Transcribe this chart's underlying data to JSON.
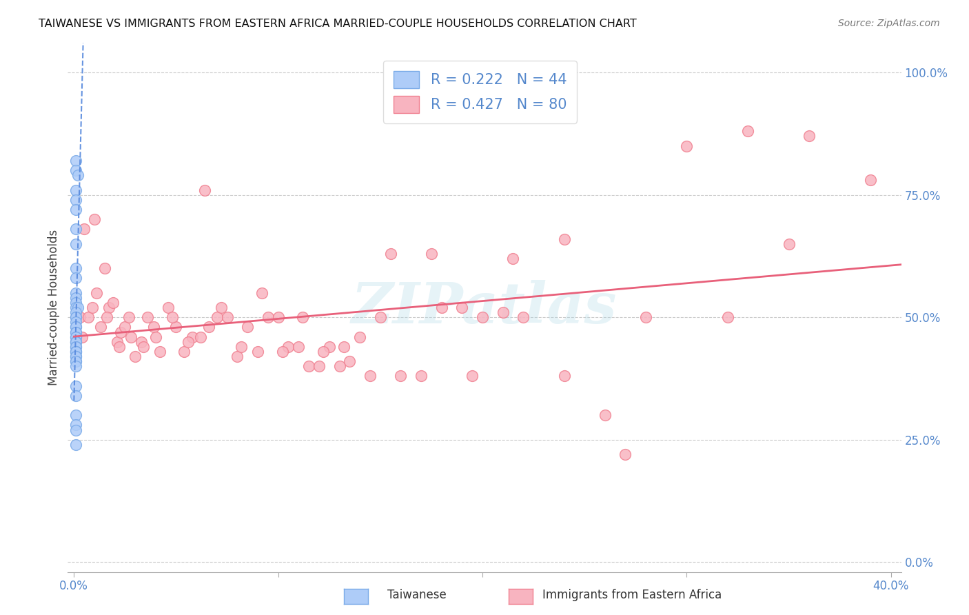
{
  "title": "TAIWANESE VS IMMIGRANTS FROM EASTERN AFRICA MARRIED-COUPLE HOUSEHOLDS CORRELATION CHART",
  "source": "Source: ZipAtlas.com",
  "ylabel": "Married-couple Households",
  "right_yticks": [
    0.0,
    0.25,
    0.5,
    0.75,
    1.0
  ],
  "right_yticklabels": [
    "0.0%",
    "25.0%",
    "50.0%",
    "75.0%",
    "100.0%"
  ],
  "xlim": [
    -0.003,
    0.405
  ],
  "ylim": [
    -0.02,
    1.06
  ],
  "watermark": "ZIPatlas",
  "legend_r1": "R = 0.222",
  "legend_n1": "N = 44",
  "legend_r2": "R = 0.427",
  "legend_n2": "N = 80",
  "legend_label1": "Taiwanese",
  "legend_label2": "Immigrants from Eastern Africa",
  "blue_fill": "#AECCF8",
  "blue_edge": "#7AAAE8",
  "pink_fill": "#F8B4C0",
  "pink_edge": "#F08090",
  "blue_line": "#5588DD",
  "pink_line": "#E8607A",
  "title_color": "#111111",
  "axis_tick_color": "#5588CC",
  "grid_color": "#CCCCCC",
  "bg_color": "#FFFFFF",
  "taiwanese_x": [
    0.001,
    0.001,
    0.002,
    0.001,
    0.001,
    0.001,
    0.001,
    0.001,
    0.001,
    0.001,
    0.001,
    0.001,
    0.001,
    0.001,
    0.002,
    0.001,
    0.001,
    0.001,
    0.001,
    0.001,
    0.001,
    0.001,
    0.001,
    0.001,
    0.001,
    0.001,
    0.001,
    0.001,
    0.001,
    0.001,
    0.001,
    0.001,
    0.001,
    0.001,
    0.001,
    0.001,
    0.001,
    0.001,
    0.001,
    0.001,
    0.001,
    0.001,
    0.001,
    0.001
  ],
  "taiwanese_y": [
    0.82,
    0.8,
    0.79,
    0.76,
    0.74,
    0.72,
    0.68,
    0.65,
    0.6,
    0.58,
    0.55,
    0.54,
    0.53,
    0.52,
    0.52,
    0.51,
    0.5,
    0.5,
    0.49,
    0.48,
    0.48,
    0.47,
    0.47,
    0.46,
    0.46,
    0.45,
    0.45,
    0.45,
    0.44,
    0.44,
    0.43,
    0.43,
    0.43,
    0.42,
    0.42,
    0.41,
    0.41,
    0.4,
    0.36,
    0.34,
    0.3,
    0.28,
    0.27,
    0.24
  ],
  "eastern_africa_x": [
    0.003,
    0.005,
    0.007,
    0.009,
    0.011,
    0.013,
    0.015,
    0.017,
    0.019,
    0.021,
    0.023,
    0.025,
    0.027,
    0.03,
    0.033,
    0.036,
    0.039,
    0.042,
    0.046,
    0.05,
    0.054,
    0.058,
    0.062,
    0.066,
    0.07,
    0.075,
    0.08,
    0.085,
    0.09,
    0.095,
    0.1,
    0.105,
    0.11,
    0.115,
    0.12,
    0.125,
    0.13,
    0.135,
    0.14,
    0.145,
    0.15,
    0.16,
    0.17,
    0.18,
    0.19,
    0.2,
    0.21,
    0.22,
    0.24,
    0.26,
    0.004,
    0.01,
    0.016,
    0.022,
    0.028,
    0.034,
    0.04,
    0.048,
    0.056,
    0.064,
    0.072,
    0.082,
    0.092,
    0.102,
    0.112,
    0.122,
    0.132,
    0.155,
    0.175,
    0.195,
    0.215,
    0.24,
    0.27,
    0.3,
    0.33,
    0.36,
    0.35,
    0.39,
    0.28,
    0.32
  ],
  "eastern_africa_y": [
    0.5,
    0.68,
    0.5,
    0.52,
    0.55,
    0.48,
    0.6,
    0.52,
    0.53,
    0.45,
    0.47,
    0.48,
    0.5,
    0.42,
    0.45,
    0.5,
    0.48,
    0.43,
    0.52,
    0.48,
    0.43,
    0.46,
    0.46,
    0.48,
    0.5,
    0.5,
    0.42,
    0.48,
    0.43,
    0.5,
    0.5,
    0.44,
    0.44,
    0.4,
    0.4,
    0.44,
    0.4,
    0.41,
    0.46,
    0.38,
    0.5,
    0.38,
    0.38,
    0.52,
    0.52,
    0.5,
    0.51,
    0.5,
    0.38,
    0.3,
    0.46,
    0.7,
    0.5,
    0.44,
    0.46,
    0.44,
    0.46,
    0.5,
    0.45,
    0.76,
    0.52,
    0.44,
    0.55,
    0.43,
    0.5,
    0.43,
    0.44,
    0.63,
    0.63,
    0.38,
    0.62,
    0.66,
    0.22,
    0.85,
    0.88,
    0.87,
    0.65,
    0.78,
    0.5,
    0.5
  ],
  "tw_trend_x0": 0.0,
  "tw_trend_x1": 0.1,
  "ea_trend_x0": 0.0,
  "ea_trend_x1": 0.405
}
